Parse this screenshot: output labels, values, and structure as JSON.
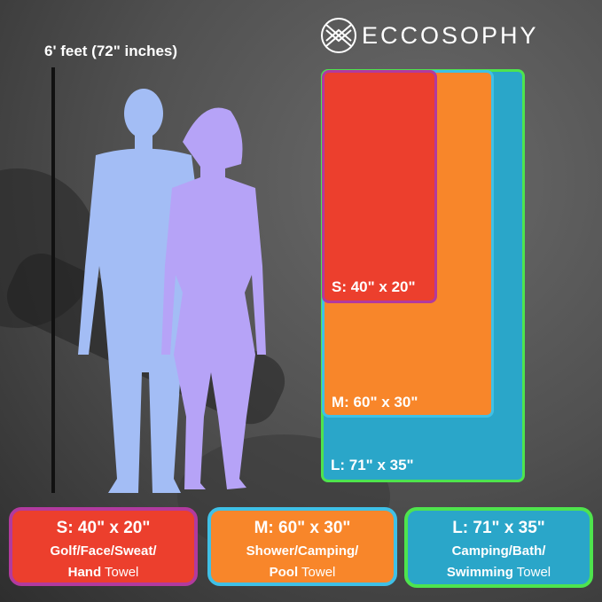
{
  "brand": {
    "name": "ECCOSOPHY",
    "icon": "woven-circle-logo-icon"
  },
  "height_label": "6' feet (72\" inches)",
  "colors": {
    "small": "#ec3f2d",
    "small_border": "#b23a9e",
    "medium": "#f8862a",
    "medium_border": "#3fc0e6",
    "large": "#2aa6c9",
    "large_border": "#4ee44e",
    "man": "#a3bdf5",
    "woman": "#b6a3f7"
  },
  "towels": {
    "small": {
      "size": "S: 40\" x 20\"",
      "uses": "Golf/Face/Sweat/",
      "uses_bold2": "Hand",
      "suffix": "Towel"
    },
    "medium": {
      "size": "M: 60\" x 30\"",
      "uses": "Shower/Camping/",
      "uses_bold2": "Pool",
      "suffix": "Towel"
    },
    "large": {
      "size": "L: 71\" x 35\"",
      "uses": "Camping/Bath/",
      "uses_bold2": "Swimming",
      "suffix": "Towel"
    }
  }
}
